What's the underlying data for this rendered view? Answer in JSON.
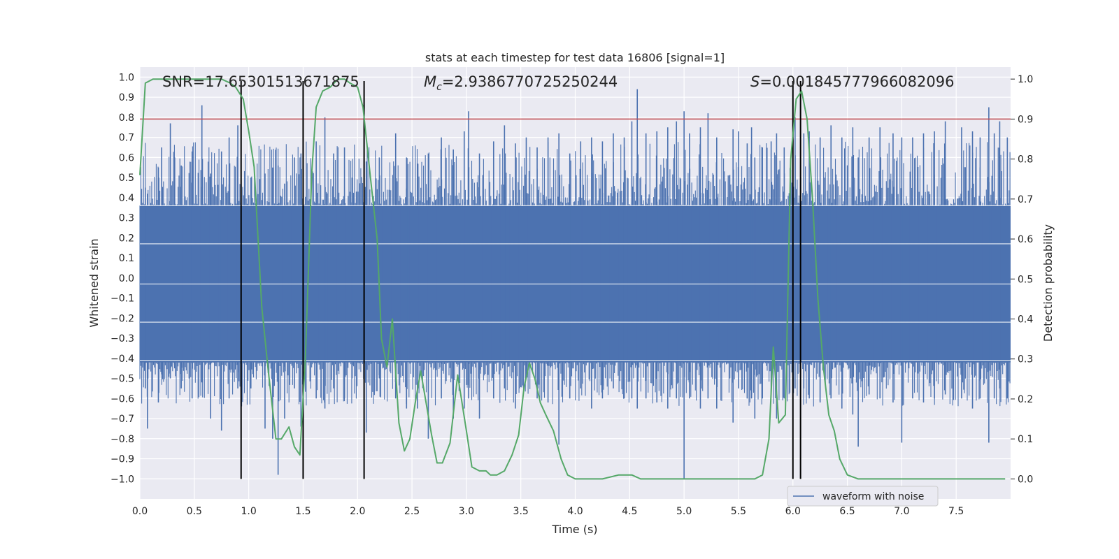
{
  "chart_data": {
    "type": "line",
    "title": "stats at each timestep for test data 16806 [signal=1]",
    "xlabel": "Time (s)",
    "ylabel": "Whitened strain",
    "ylabel_right": "Detection probability",
    "xlim": [
      0.0,
      8.0
    ],
    "ylim": [
      -1.1,
      1.05
    ],
    "ylim_right": [
      -0.05,
      1.03
    ],
    "x_ticks": [
      0.0,
      0.5,
      1.0,
      1.5,
      2.0,
      2.5,
      3.0,
      3.5,
      4.0,
      4.5,
      5.0,
      5.5,
      6.0,
      6.5,
      7.0,
      7.5
    ],
    "y_ticks": [
      1.0,
      0.9,
      0.8,
      0.7,
      0.6,
      0.5,
      0.4,
      0.3,
      0.2,
      0.1,
      0.0,
      -0.1,
      -0.2,
      -0.3,
      -0.4,
      -0.5,
      -0.6,
      -0.7,
      -0.8,
      -0.9,
      -1.0
    ],
    "y_ticks_right": [
      1.0,
      0.9,
      0.8,
      0.7,
      0.6,
      0.5,
      0.4,
      0.3,
      0.2,
      0.1,
      0.0
    ],
    "annotations": {
      "snr": "SNR=17.65301513671875",
      "mc_symbol": "M",
      "mc_sub": "c",
      "mc_value": "=2.9386770725250244",
      "s_symbol": "S",
      "s_value": "=0.001845777966082096"
    },
    "threshold": 0.9,
    "event_lines": [
      0.93,
      1.5,
      2.06,
      6.0,
      6.07
    ],
    "series": [
      {
        "name": "waveform with noise",
        "color": "#4c72b0",
        "axis": "left",
        "spikes": [
          [
            0.05,
            0.45,
            -0.55
          ],
          [
            0.07,
            0.42,
            -0.75
          ],
          [
            0.17,
            0.55,
            -0.62
          ],
          [
            0.2,
            0.65,
            -0.48
          ],
          [
            0.28,
            0.77,
            -0.5
          ],
          [
            0.32,
            0.6,
            -0.45
          ],
          [
            0.38,
            0.56,
            -0.55
          ],
          [
            0.48,
            0.63,
            -0.6
          ],
          [
            0.57,
            0.86,
            -0.52
          ],
          [
            0.65,
            0.52,
            -0.7
          ],
          [
            0.75,
            0.63,
            -0.76
          ],
          [
            0.82,
            0.7,
            -0.6
          ],
          [
            0.9,
            0.76,
            -0.55
          ],
          [
            1.02,
            0.5,
            -0.55
          ],
          [
            1.15,
            0.52,
            -0.75
          ],
          [
            1.22,
            0.55,
            -0.8
          ],
          [
            1.27,
            0.56,
            -0.98
          ],
          [
            1.33,
            0.47,
            -0.7
          ],
          [
            1.42,
            0.6,
            -0.55
          ],
          [
            1.48,
            0.62,
            -0.74
          ],
          [
            1.62,
            0.68,
            -0.6
          ],
          [
            1.7,
            0.8,
            -0.65
          ],
          [
            1.78,
            0.62,
            -0.55
          ],
          [
            1.88,
            0.65,
            -0.6
          ],
          [
            1.95,
            0.5,
            -0.5
          ],
          [
            2.08,
            0.58,
            -0.77
          ],
          [
            2.2,
            0.6,
            -0.5
          ],
          [
            2.35,
            0.72,
            -0.6
          ],
          [
            2.45,
            0.6,
            -0.65
          ],
          [
            2.55,
            0.57,
            -0.65
          ],
          [
            2.65,
            0.62,
            -0.8
          ],
          [
            2.77,
            0.7,
            -0.6
          ],
          [
            2.88,
            0.64,
            -0.7
          ],
          [
            2.98,
            0.73,
            -0.65
          ],
          [
            3.02,
            0.83,
            -0.6
          ],
          [
            3.12,
            0.62,
            -0.7
          ],
          [
            3.25,
            0.68,
            -0.6
          ],
          [
            3.35,
            0.76,
            -0.55
          ],
          [
            3.45,
            0.67,
            -0.65
          ],
          [
            3.55,
            0.7,
            -0.5
          ],
          [
            3.65,
            0.65,
            -0.6
          ],
          [
            3.75,
            0.7,
            -0.62
          ],
          [
            3.85,
            0.72,
            -0.83
          ],
          [
            3.95,
            0.62,
            -0.6
          ],
          [
            4.05,
            0.68,
            -0.55
          ],
          [
            4.15,
            0.7,
            -0.65
          ],
          [
            4.25,
            0.68,
            -0.6
          ],
          [
            4.35,
            0.72,
            -0.55
          ],
          [
            4.45,
            0.7,
            -0.6
          ],
          [
            4.52,
            0.78,
            -0.6
          ],
          [
            4.57,
            0.94,
            -0.65
          ],
          [
            4.65,
            0.72,
            -0.6
          ],
          [
            4.75,
            0.73,
            -0.62
          ],
          [
            4.85,
            0.75,
            -0.65
          ],
          [
            4.93,
            0.78,
            -0.6
          ],
          [
            5.0,
            0.83,
            -1.0
          ],
          [
            5.05,
            0.72,
            -0.6
          ],
          [
            5.15,
            0.75,
            -0.65
          ],
          [
            5.22,
            0.82,
            -0.6
          ],
          [
            5.3,
            0.7,
            -0.65
          ],
          [
            5.45,
            0.74,
            -0.72
          ],
          [
            5.5,
            0.73,
            -0.55
          ],
          [
            5.58,
            0.67,
            -0.6
          ],
          [
            5.62,
            0.75,
            -0.6
          ],
          [
            5.65,
            0.6,
            -0.7
          ],
          [
            5.72,
            0.65,
            -0.6
          ],
          [
            5.8,
            0.68,
            -0.58
          ],
          [
            5.85,
            0.72,
            -0.7
          ],
          [
            5.92,
            0.65,
            -0.6
          ],
          [
            6.02,
            0.8,
            -0.55
          ],
          [
            6.1,
            0.72,
            -0.55
          ],
          [
            6.15,
            0.73,
            -0.6
          ],
          [
            6.25,
            0.7,
            -0.62
          ],
          [
            6.35,
            0.76,
            -0.6
          ],
          [
            6.45,
            0.7,
            -0.65
          ],
          [
            6.55,
            0.75,
            -0.68
          ],
          [
            6.6,
            0.6,
            -0.84
          ],
          [
            6.7,
            0.7,
            -0.58
          ],
          [
            6.8,
            0.75,
            -0.6
          ],
          [
            6.92,
            0.72,
            -0.62
          ],
          [
            7.0,
            0.7,
            -0.82
          ],
          [
            7.1,
            0.7,
            -0.6
          ],
          [
            7.2,
            0.72,
            -0.62
          ],
          [
            7.3,
            0.73,
            -0.6
          ],
          [
            7.4,
            0.78,
            -0.58
          ],
          [
            7.55,
            0.75,
            -0.6
          ],
          [
            7.65,
            0.73,
            -0.65
          ],
          [
            7.72,
            0.7,
            -0.6
          ],
          [
            7.8,
            0.85,
            -0.82
          ],
          [
            7.85,
            0.72,
            -0.6
          ],
          [
            7.9,
            0.78,
            -0.55
          ],
          [
            7.97,
            0.7,
            -0.6
          ]
        ]
      },
      {
        "name": "detection probability",
        "color": "#55a868",
        "axis": "right",
        "x": [
          0.0,
          0.05,
          0.12,
          0.2,
          0.35,
          0.5,
          0.65,
          0.75,
          0.83,
          0.88,
          0.95,
          1.0,
          1.05,
          1.12,
          1.18,
          1.25,
          1.3,
          1.37,
          1.42,
          1.47,
          1.52,
          1.58,
          1.62,
          1.68,
          1.75,
          1.82,
          1.88,
          1.93,
          2.0,
          2.05,
          2.12,
          2.18,
          2.22,
          2.27,
          2.32,
          2.38,
          2.43,
          2.48,
          2.53,
          2.58,
          2.63,
          2.68,
          2.73,
          2.78,
          2.85,
          2.92,
          3.0,
          3.05,
          3.12,
          3.18,
          3.22,
          3.28,
          3.35,
          3.42,
          3.48,
          3.53,
          3.58,
          3.63,
          3.68,
          3.73,
          3.8,
          3.87,
          3.93,
          4.0,
          4.15,
          4.25,
          4.4,
          4.45,
          4.52,
          4.6,
          4.75,
          5.0,
          5.25,
          5.5,
          5.65,
          5.72,
          5.78,
          5.82,
          5.87,
          5.93,
          5.98,
          6.03,
          6.08,
          6.13,
          6.18,
          6.23,
          6.28,
          6.33,
          6.38,
          6.43,
          6.5,
          6.6,
          6.8,
          7.0,
          7.2,
          7.4,
          7.6,
          7.8,
          7.95
        ],
        "y": [
          0.76,
          0.99,
          1.0,
          1.0,
          1.0,
          1.0,
          1.0,
          1.0,
          0.99,
          0.98,
          0.95,
          0.87,
          0.78,
          0.43,
          0.27,
          0.1,
          0.1,
          0.13,
          0.08,
          0.06,
          0.3,
          0.77,
          0.93,
          0.97,
          0.98,
          1.0,
          1.0,
          0.99,
          0.98,
          0.93,
          0.75,
          0.6,
          0.35,
          0.28,
          0.4,
          0.14,
          0.07,
          0.1,
          0.19,
          0.27,
          0.19,
          0.11,
          0.04,
          0.04,
          0.09,
          0.26,
          0.12,
          0.03,
          0.02,
          0.02,
          0.01,
          0.01,
          0.02,
          0.06,
          0.11,
          0.23,
          0.29,
          0.25,
          0.19,
          0.16,
          0.12,
          0.05,
          0.01,
          0.0,
          0.0,
          0.0,
          0.01,
          0.01,
          0.01,
          0.0,
          0.0,
          0.0,
          0.0,
          0.0,
          0.0,
          0.01,
          0.1,
          0.33,
          0.14,
          0.16,
          0.8,
          0.95,
          0.97,
          0.9,
          0.7,
          0.45,
          0.28,
          0.16,
          0.12,
          0.05,
          0.01,
          0.0,
          0.0,
          0.0,
          0.0,
          0.0,
          0.0,
          0.0,
          0.0
        ]
      }
    ],
    "legend": {
      "position": "lower-right",
      "entries": [
        "waveform with noise"
      ]
    },
    "grid": true
  },
  "colors": {
    "plot_bg": "#eaeaf2",
    "grid": "#ffffff",
    "threshold": "#c44e52",
    "event_line": "#000000"
  }
}
